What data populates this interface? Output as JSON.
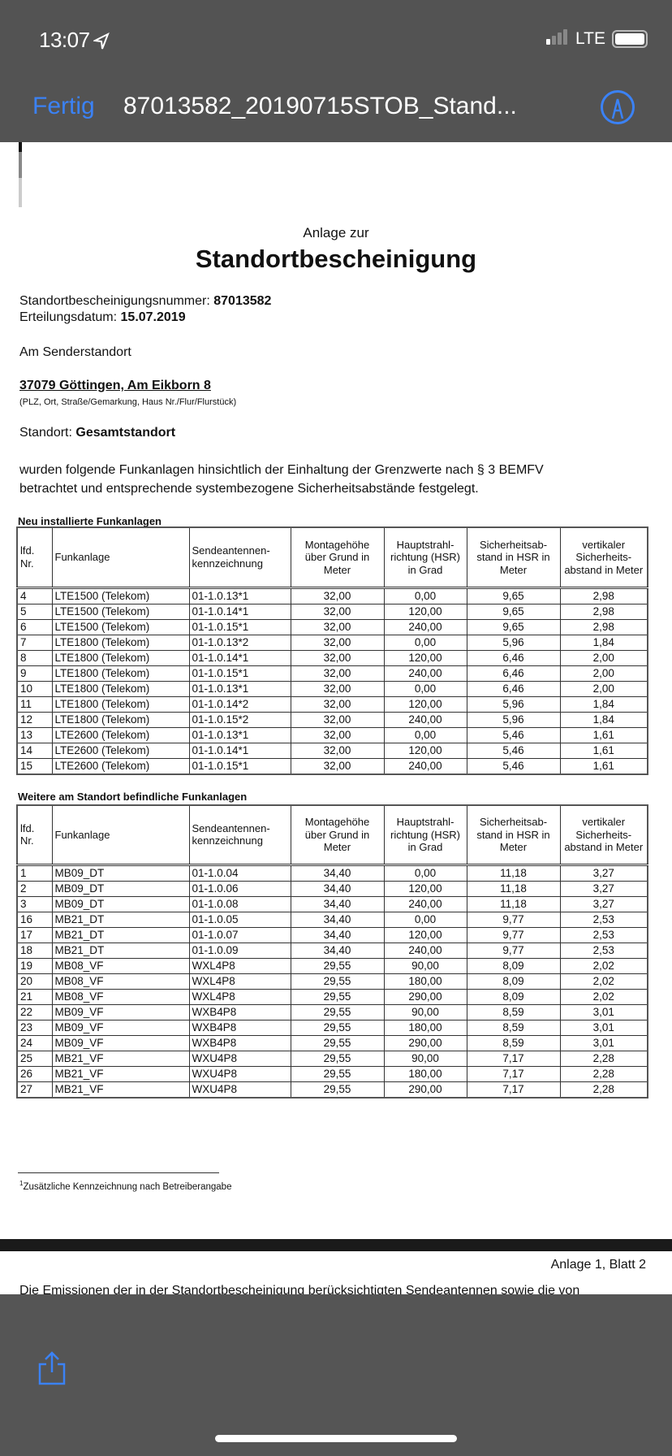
{
  "status_bar": {
    "time": "13:07",
    "network": "LTE"
  },
  "nav": {
    "done_label": "Fertig",
    "title": "87013582_20190715STOB_Stand...",
    "markup_icon": "markup-pen-icon",
    "accent": "#3b82f6"
  },
  "doc": {
    "subtitle": "Anlage zur",
    "heading": "Standortbescheinigung",
    "number_label": "Standortbescheinigungsnummer: ",
    "number": "87013582",
    "date_label": "Erteilungsdatum: ",
    "date": "15.07.2019",
    "site_intro": "Am Senderstandort",
    "address": "37079 Göttingen, Am Eikborn 8",
    "address_note": "(PLZ, Ort, Straße/Gemarkung, Haus Nr./Flur/Flurstück)",
    "standort_label": "Standort: ",
    "standort": "Gesamtstandort",
    "para1": "wurden folgende Funkanlagen hinsichtlich der Einhaltung der Grenzwerte nach § 3 BEMFV",
    "para2": "betrachtet und entsprechende systembezogene Sicherheitsabstände festgelegt.",
    "headers": [
      "lfd. Nr.",
      "Funkanlage",
      "Sendeantennen-kennzeichnung",
      "Montagehöhe über Grund in Meter",
      "Hauptstrahl-richtung (HSR) in Grad",
      "Sicherheitsab-stand in HSR in Meter",
      "vertikaler Sicherheits-abstand in Meter"
    ],
    "table1": {
      "title": "Neu installierte Funkanlagen",
      "rows": [
        [
          "4",
          "LTE1500 (Telekom)",
          "01-1.0.13*1",
          "32,00",
          "0,00",
          "9,65",
          "2,98"
        ],
        [
          "5",
          "LTE1500 (Telekom)",
          "01-1.0.14*1",
          "32,00",
          "120,00",
          "9,65",
          "2,98"
        ],
        [
          "6",
          "LTE1500 (Telekom)",
          "01-1.0.15*1",
          "32,00",
          "240,00",
          "9,65",
          "2,98"
        ],
        [
          "7",
          "LTE1800 (Telekom)",
          "01-1.0.13*2",
          "32,00",
          "0,00",
          "5,96",
          "1,84"
        ],
        [
          "8",
          "LTE1800 (Telekom)",
          "01-1.0.14*1",
          "32,00",
          "120,00",
          "6,46",
          "2,00"
        ],
        [
          "9",
          "LTE1800 (Telekom)",
          "01-1.0.15*1",
          "32,00",
          "240,00",
          "6,46",
          "2,00"
        ],
        [
          "10",
          "LTE1800 (Telekom)",
          "01-1.0.13*1",
          "32,00",
          "0,00",
          "6,46",
          "2,00"
        ],
        [
          "11",
          "LTE1800 (Telekom)",
          "01-1.0.14*2",
          "32,00",
          "120,00",
          "5,96",
          "1,84"
        ],
        [
          "12",
          "LTE1800 (Telekom)",
          "01-1.0.15*2",
          "32,00",
          "240,00",
          "5,96",
          "1,84"
        ],
        [
          "13",
          "LTE2600 (Telekom)",
          "01-1.0.13*1",
          "32,00",
          "0,00",
          "5,46",
          "1,61"
        ],
        [
          "14",
          "LTE2600 (Telekom)",
          "01-1.0.14*1",
          "32,00",
          "120,00",
          "5,46",
          "1,61"
        ],
        [
          "15",
          "LTE2600 (Telekom)",
          "01-1.0.15*1",
          "32,00",
          "240,00",
          "5,46",
          "1,61"
        ]
      ]
    },
    "table2": {
      "title": "Weitere am Standort befindliche Funkanlagen",
      "rows": [
        [
          "1",
          "MB09_DT",
          "01-1.0.04",
          "34,40",
          "0,00",
          "11,18",
          "3,27"
        ],
        [
          "2",
          "MB09_DT",
          "01-1.0.06",
          "34,40",
          "120,00",
          "11,18",
          "3,27"
        ],
        [
          "3",
          "MB09_DT",
          "01-1.0.08",
          "34,40",
          "240,00",
          "11,18",
          "3,27"
        ],
        [
          "16",
          "MB21_DT",
          "01-1.0.05",
          "34,40",
          "0,00",
          "9,77",
          "2,53"
        ],
        [
          "17",
          "MB21_DT",
          "01-1.0.07",
          "34,40",
          "120,00",
          "9,77",
          "2,53"
        ],
        [
          "18",
          "MB21_DT",
          "01-1.0.09",
          "34,40",
          "240,00",
          "9,77",
          "2,53"
        ],
        [
          "19",
          "MB08_VF",
          "WXL4P8",
          "29,55",
          "90,00",
          "8,09",
          "2,02"
        ],
        [
          "20",
          "MB08_VF",
          "WXL4P8",
          "29,55",
          "180,00",
          "8,09",
          "2,02"
        ],
        [
          "21",
          "MB08_VF",
          "WXL4P8",
          "29,55",
          "290,00",
          "8,09",
          "2,02"
        ],
        [
          "22",
          "MB09_VF",
          "WXB4P8",
          "29,55",
          "90,00",
          "8,59",
          "3,01"
        ],
        [
          "23",
          "MB09_VF",
          "WXB4P8",
          "29,55",
          "180,00",
          "8,59",
          "3,01"
        ],
        [
          "24",
          "MB09_VF",
          "WXB4P8",
          "29,55",
          "290,00",
          "8,59",
          "3,01"
        ],
        [
          "25",
          "MB21_VF",
          "WXU4P8",
          "29,55",
          "90,00",
          "7,17",
          "2,28"
        ],
        [
          "26",
          "MB21_VF",
          "WXU4P8",
          "29,55",
          "180,00",
          "7,17",
          "2,28"
        ],
        [
          "27",
          "MB21_VF",
          "WXU4P8",
          "29,55",
          "290,00",
          "7,17",
          "2,28"
        ]
      ]
    },
    "footnote_mark": "1",
    "footnote": "Zusätzliche Kennzeichnung nach Betreiberangabe",
    "page2_label": "Anlage 1, Blatt 2",
    "page2_text": "Die Emissionen der in der Standortbescheinigung berücksichtigten Sendeantennen sowie die von"
  },
  "toolbar": {
    "share_icon": "share-icon"
  }
}
